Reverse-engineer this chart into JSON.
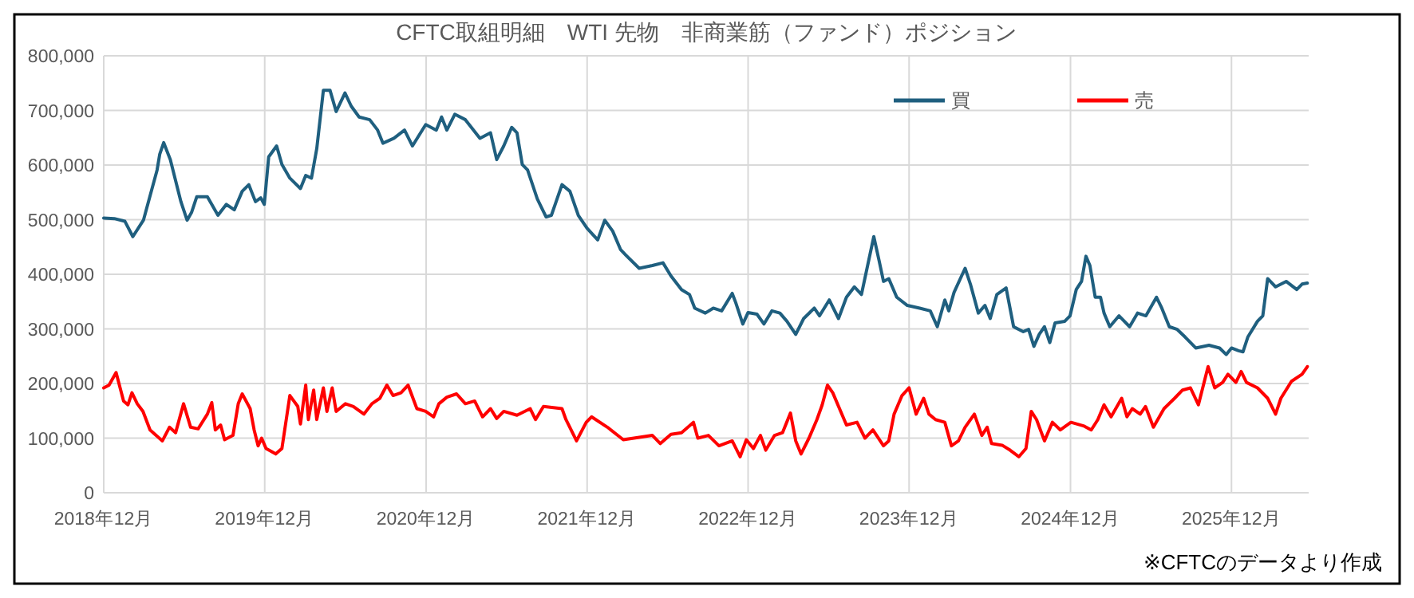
{
  "chart_data": {
    "type": "line",
    "title": "CFTC取組明細　WTI 先物　非商業筋（ファンド）ポジション",
    "xlim": [
      "2018-12-01",
      "2026-05-25"
    ],
    "xticks": [
      {
        "value": "2018-12-01",
        "label": "2018年12月"
      },
      {
        "value": "2019-12-01",
        "label": "2019年12月"
      },
      {
        "value": "2020-12-01",
        "label": "2020年12月"
      },
      {
        "value": "2021-12-01",
        "label": "2021年12月"
      },
      {
        "value": "2022-12-01",
        "label": "2022年12月"
      },
      {
        "value": "2023-12-01",
        "label": "2023年12月"
      },
      {
        "value": "2024-12-01",
        "label": "2024年12月"
      },
      {
        "value": "2025-12-01",
        "label": "2025年12月"
      }
    ],
    "ylim": [
      0,
      800000
    ],
    "yticks": [
      0,
      {
        "value": 100000,
        "label": "100,000"
      },
      {
        "value": 200000,
        "label": "200,000"
      },
      {
        "value": 300000,
        "label": "300,000"
      },
      {
        "value": 400000,
        "label": "400,000"
      },
      {
        "value": 500000,
        "label": "500,000"
      },
      {
        "value": 600000,
        "label": "600,000"
      },
      {
        "value": 700000,
        "label": "700,000"
      },
      {
        "value": 800000,
        "label": "800,000"
      }
    ],
    "grid": true,
    "legend": "top right",
    "line_style": "solid",
    "annotations": [
      "※CFTCのデータより作成"
    ],
    "series": [
      {
        "name": "買",
        "color": "#1f5f7f",
        "x": [
          "2018-12-01",
          "2018-12-25",
          "2019-01-18",
          "2019-02-05",
          "2019-03-01",
          "2019-04-01",
          "2019-04-07",
          "2019-04-16",
          "2019-05-01",
          "2019-05-25",
          "2019-06-08",
          "2019-06-18",
          "2019-06-30",
          "2019-07-24",
          "2019-08-17",
          "2019-09-05",
          "2019-09-23",
          "2019-10-11",
          "2019-10-26",
          "2019-11-10",
          "2019-11-22",
          "2019-11-30",
          "2019-12-10",
          "2019-12-28",
          "2020-01-09",
          "2020-01-27",
          "2020-02-20",
          "2020-03-03",
          "2020-03-16",
          "2020-03-28",
          "2020-04-12",
          "2020-04-27",
          "2020-05-11",
          "2020-05-31",
          "2020-06-14",
          "2020-07-02",
          "2020-07-26",
          "2020-08-13",
          "2020-08-25",
          "2020-09-19",
          "2020-10-13",
          "2020-10-31",
          "2020-11-30",
          "2020-12-24",
          "2021-01-05",
          "2021-01-17",
          "2021-02-04",
          "2021-02-28",
          "2021-04-02",
          "2021-04-26",
          "2021-05-10",
          "2021-05-26",
          "2021-06-13",
          "2021-06-25",
          "2021-07-07",
          "2021-07-19",
          "2021-08-10",
          "2021-08-30",
          "2021-09-11",
          "2021-10-05",
          "2021-10-23",
          "2021-11-11",
          "2021-12-01",
          "2021-12-25",
          "2022-01-10",
          "2022-01-28",
          "2022-02-15",
          "2022-02-27",
          "2022-03-29",
          "2022-04-28",
          "2022-05-22",
          "2022-06-09",
          "2022-07-03",
          "2022-07-21",
          "2022-08-02",
          "2022-08-26",
          "2022-09-13",
          "2022-10-02",
          "2022-10-26",
          "2022-11-03",
          "2022-11-19",
          "2022-12-01",
          "2022-12-21",
          "2023-01-06",
          "2023-01-24",
          "2023-02-11",
          "2023-02-27",
          "2023-03-19",
          "2023-04-06",
          "2023-04-30",
          "2023-05-12",
          "2023-06-03",
          "2023-06-24",
          "2023-07-12",
          "2023-07-30",
          "2023-08-15",
          "2023-08-29",
          "2023-09-12",
          "2023-09-24",
          "2023-10-04",
          "2023-10-16",
          "2023-11-03",
          "2023-11-27",
          "2023-12-25",
          "2024-01-18",
          "2024-02-03",
          "2024-02-20",
          "2024-02-29",
          "2024-03-12",
          "2024-04-06",
          "2024-04-18",
          "2024-05-06",
          "2024-05-21",
          "2024-06-02",
          "2024-06-17",
          "2024-07-08",
          "2024-07-25",
          "2024-08-16",
          "2024-08-28",
          "2024-09-09",
          "2024-09-21",
          "2024-10-03",
          "2024-10-15",
          "2024-10-27",
          "2024-11-18",
          "2024-11-30",
          "2024-12-14",
          "2024-12-26",
          "2025-01-05",
          "2025-01-14",
          "2025-01-26",
          "2025-02-07",
          "2025-02-15",
          "2025-02-28",
          "2025-03-21",
          "2025-04-14",
          "2025-05-02",
          "2025-05-21",
          "2025-06-14",
          "2025-06-26",
          "2025-07-13",
          "2025-07-31",
          "2025-08-18",
          "2025-09-11",
          "2025-10-11",
          "2025-11-04",
          "2025-11-19",
          "2025-12-01",
          "2025-12-17",
          "2025-12-27",
          "2026-01-07",
          "2026-01-29",
          "2026-02-10",
          "2026-02-21",
          "2026-03-11",
          "2026-04-04",
          "2026-04-28",
          "2026-05-10",
          "2026-05-22"
        ],
        "values": [
          503000,
          502000,
          497000,
          469000,
          499000,
          591000,
          620000,
          641000,
          610000,
          533000,
          499000,
          513000,
          542000,
          542000,
          508000,
          528000,
          518000,
          552000,
          564000,
          533000,
          540000,
          528000,
          615000,
          635000,
          601000,
          576000,
          557000,
          581000,
          576000,
          630000,
          737000,
          737000,
          698000,
          732000,
          708000,
          688000,
          683000,
          664000,
          640000,
          649000,
          664000,
          635000,
          674000,
          664000,
          688000,
          664000,
          693000,
          683000,
          649000,
          659000,
          610000,
          635000,
          669000,
          659000,
          601000,
          591000,
          538000,
          505000,
          508000,
          564000,
          552000,
          508000,
          484000,
          463000,
          499000,
          479000,
          445000,
          435000,
          411000,
          416000,
          421000,
          397000,
          372000,
          363000,
          338000,
          329000,
          338000,
          333000,
          365000,
          348000,
          309000,
          330000,
          327000,
          309000,
          333000,
          329000,
          314000,
          290000,
          319000,
          338000,
          324000,
          353000,
          319000,
          358000,
          377000,
          363000,
          416000,
          469000,
          425000,
          387000,
          392000,
          358000,
          343000,
          338000,
          333000,
          304000,
          353000,
          333000,
          367000,
          411000,
          382000,
          329000,
          343000,
          319000,
          363000,
          375000,
          304000,
          295000,
          299000,
          268000,
          290000,
          304000,
          275000,
          311000,
          314000,
          324000,
          372000,
          387000,
          433000,
          416000,
          358000,
          358000,
          329000,
          304000,
          324000,
          304000,
          329000,
          324000,
          358000,
          338000,
          304000,
          299000,
          285000,
          265000,
          270000,
          265000,
          253000,
          265000,
          260000,
          258000,
          285000,
          314000,
          324000,
          392000,
          377000,
          387000,
          372000,
          382000,
          384000
        ]
      },
      {
        "name": "売",
        "color": "#ff0000",
        "x": [
          "2018-12-01",
          "2018-12-13",
          "2018-12-29",
          "2019-01-15",
          "2019-01-25",
          "2019-02-03",
          "2019-02-15",
          "2019-02-28",
          "2019-03-16",
          "2019-04-13",
          "2019-04-29",
          "2019-05-13",
          "2019-05-31",
          "2019-06-16",
          "2019-07-03",
          "2019-07-24",
          "2019-08-03",
          "2019-08-11",
          "2019-08-23",
          "2019-09-01",
          "2019-09-20",
          "2019-10-02",
          "2019-10-11",
          "2019-10-29",
          "2019-11-07",
          "2019-11-16",
          "2019-11-24",
          "2019-12-04",
          "2019-12-26",
          "2020-01-09",
          "2020-01-27",
          "2020-02-14",
          "2020-02-20",
          "2020-03-03",
          "2020-03-09",
          "2020-03-21",
          "2020-03-28",
          "2020-04-12",
          "2020-04-20",
          "2020-05-02",
          "2020-05-11",
          "2020-06-01",
          "2020-06-19",
          "2020-07-13",
          "2020-07-31",
          "2020-08-18",
          "2020-09-03",
          "2020-09-17",
          "2020-10-05",
          "2020-10-21",
          "2020-11-10",
          "2020-11-30",
          "2020-12-18",
          "2020-12-30",
          "2021-01-17",
          "2021-02-08",
          "2021-02-28",
          "2021-03-21",
          "2021-04-08",
          "2021-04-26",
          "2021-05-10",
          "2021-05-26",
          "2021-06-25",
          "2021-07-25",
          "2021-08-06",
          "2021-08-24",
          "2021-10-05",
          "2021-10-14",
          "2021-11-07",
          "2021-11-29",
          "2021-12-11",
          "2022-01-16",
          "2022-02-21",
          "2022-03-17",
          "2022-04-28",
          "2022-05-16",
          "2022-06-09",
          "2022-07-03",
          "2022-07-30",
          "2022-08-09",
          "2022-09-02",
          "2022-09-26",
          "2022-10-26",
          "2022-11-13",
          "2022-11-27",
          "2022-12-13",
          "2022-12-29",
          "2023-01-10",
          "2023-01-30",
          "2023-02-17",
          "2023-03-07",
          "2023-03-19",
          "2023-03-31",
          "2023-04-18",
          "2023-05-06",
          "2023-05-18",
          "2023-05-30",
          "2023-06-11",
          "2023-07-12",
          "2023-08-05",
          "2023-08-23",
          "2023-09-10",
          "2023-10-04",
          "2023-10-16",
          "2023-10-28",
          "2023-11-15",
          "2023-12-01",
          "2023-12-17",
          "2024-01-03",
          "2024-01-15",
          "2024-01-30",
          "2024-02-20",
          "2024-03-06",
          "2024-03-22",
          "2024-04-06",
          "2024-04-27",
          "2024-05-14",
          "2024-05-26",
          "2024-06-05",
          "2024-06-29",
          "2024-07-17",
          "2024-08-06",
          "2024-08-22",
          "2024-09-03",
          "2024-09-15",
          "2024-10-03",
          "2024-10-21",
          "2024-11-08",
          "2024-12-02",
          "2025-01-01",
          "2025-01-17",
          "2025-02-01",
          "2025-02-15",
          "2025-03-03",
          "2025-03-27",
          "2025-04-08",
          "2025-04-20",
          "2025-05-08",
          "2025-05-20",
          "2025-06-07",
          "2025-07-01",
          "2025-07-25",
          "2025-08-12",
          "2025-08-30",
          "2025-09-17",
          "2025-10-09",
          "2025-10-24",
          "2025-11-11",
          "2025-11-23",
          "2025-12-11",
          "2025-12-23",
          "2026-01-04",
          "2026-01-29",
          "2026-02-21",
          "2026-03-11",
          "2026-03-23",
          "2026-04-16",
          "2026-05-10",
          "2026-05-22"
        ],
        "values": [
          192000,
          197000,
          220000,
          168000,
          161000,
          183000,
          163000,
          149000,
          115000,
          95000,
          120000,
          110000,
          163000,
          120000,
          117000,
          144000,
          165000,
          115000,
          124000,
          97000,
          105000,
          163000,
          181000,
          154000,
          115000,
          86000,
          100000,
          81000,
          71000,
          81000,
          178000,
          158000,
          126000,
          197000,
          134000,
          188000,
          134000,
          192000,
          149000,
          192000,
          149000,
          163000,
          158000,
          144000,
          163000,
          173000,
          197000,
          178000,
          183000,
          197000,
          154000,
          149000,
          139000,
          163000,
          175000,
          181000,
          163000,
          168000,
          139000,
          154000,
          136000,
          149000,
          142000,
          154000,
          134000,
          158000,
          154000,
          134000,
          95000,
          129000,
          139000,
          120000,
          97000,
          100000,
          105000,
          90000,
          107000,
          110000,
          129000,
          100000,
          105000,
          86000,
          95000,
          66000,
          97000,
          81000,
          105000,
          78000,
          105000,
          110000,
          146000,
          95000,
          71000,
          100000,
          134000,
          161000,
          197000,
          183000,
          124000,
          129000,
          100000,
          115000,
          86000,
          95000,
          144000,
          178000,
          192000,
          144000,
          173000,
          144000,
          134000,
          129000,
          86000,
          95000,
          120000,
          144000,
          105000,
          120000,
          90000,
          87000,
          78000,
          66000,
          81000,
          149000,
          134000,
          95000,
          129000,
          115000,
          129000,
          122000,
          115000,
          134000,
          161000,
          139000,
          173000,
          139000,
          154000,
          144000,
          158000,
          120000,
          154000,
          173000,
          188000,
          192000,
          161000,
          231000,
          192000,
          202000,
          217000,
          202000,
          222000,
          202000,
          192000,
          173000,
          144000,
          173000,
          204000,
          217000,
          231000
        ]
      }
    ]
  }
}
